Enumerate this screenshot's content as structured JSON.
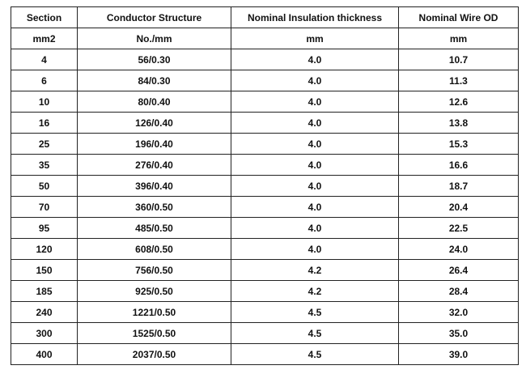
{
  "table": {
    "headers": [
      "Section",
      "Conductor Structure",
      "Nominal Insulation thickness",
      "Nominal Wire OD"
    ],
    "units": [
      "mm2",
      "No./mm",
      "mm",
      "mm"
    ],
    "rows": [
      [
        "4",
        "56/0.30",
        "4.0",
        "10.7"
      ],
      [
        "6",
        "84/0.30",
        "4.0",
        "11.3"
      ],
      [
        "10",
        "80/0.40",
        "4.0",
        "12.6"
      ],
      [
        "16",
        "126/0.40",
        "4.0",
        "13.8"
      ],
      [
        "25",
        "196/0.40",
        "4.0",
        "15.3"
      ],
      [
        "35",
        "276/0.40",
        "4.0",
        "16.6"
      ],
      [
        "50",
        "396/0.40",
        "4.0",
        "18.7"
      ],
      [
        "70",
        "360/0.50",
        "4.0",
        "20.4"
      ],
      [
        "95",
        "485/0.50",
        "4.0",
        "22.5"
      ],
      [
        "120",
        "608/0.50",
        "4.0",
        "24.0"
      ],
      [
        "150",
        "756/0.50",
        "4.2",
        "26.4"
      ],
      [
        "185",
        "925/0.50",
        "4.2",
        "28.4"
      ],
      [
        "240",
        "1221/0.50",
        "4.5",
        "32.0"
      ],
      [
        "300",
        "1525/0.50",
        "4.5",
        "35.0"
      ],
      [
        "400",
        "2037/0.50",
        "4.5",
        "39.0"
      ]
    ]
  }
}
